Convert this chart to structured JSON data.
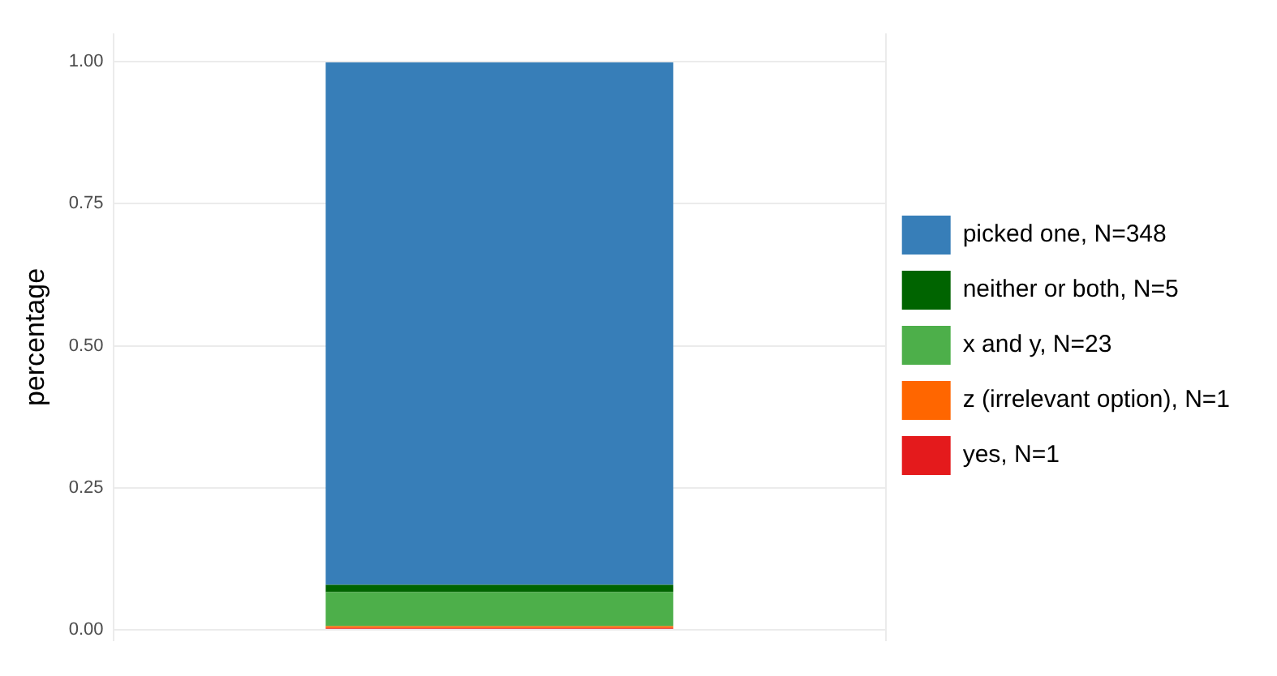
{
  "chart_data": {
    "type": "bar",
    "ylabel": "percentage",
    "categories": [
      null
    ],
    "stacked": true,
    "series": [
      {
        "name": "yes, N=1",
        "color": "#e41a1c",
        "values": [
          0.003
        ]
      },
      {
        "name": "z (irrelevant option), N=1",
        "color": "#ff6600",
        "values": [
          0.003
        ]
      },
      {
        "name": "x and y, N=23",
        "color": "#4daf4a",
        "values": [
          0.06
        ]
      },
      {
        "name": "neither or both, N=5",
        "color": "#006400",
        "values": [
          0.013
        ]
      },
      {
        "name": "picked one, N=348",
        "color": "#377eb8",
        "values": [
          0.92
        ]
      }
    ],
    "ylim": [
      -0.02,
      1.05
    ],
    "yticks": [
      {
        "value": 0,
        "label": "0.00"
      },
      {
        "value": 0.25,
        "label": "0.25"
      },
      {
        "value": 0.5,
        "label": "0.50"
      },
      {
        "value": 0.75,
        "label": "0.75"
      },
      {
        "value": 1,
        "label": "1.00"
      }
    ],
    "grid": true,
    "legend": "right",
    "tick_labels": "y"
  }
}
